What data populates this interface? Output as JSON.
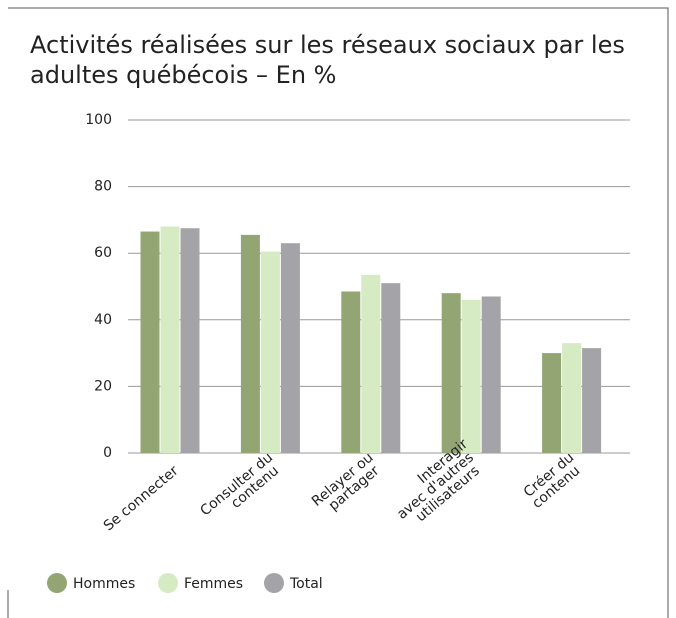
{
  "chart_data": {
    "type": "bar",
    "title": "Activités réalisées sur les réseaux sociaux par les adultes québécois – En %",
    "categories": [
      "Se connecter",
      "Consulter du\ncontenu",
      "Relayer ou\npartager",
      "Interagir\navec d'autres\nutilisateurs",
      "Créer du\ncontenu"
    ],
    "series": [
      {
        "name": "Hommes",
        "color": "#94a574",
        "values": [
          66.5,
          65.5,
          48.5,
          48,
          30
        ]
      },
      {
        "name": "Femmes",
        "color": "#d6ebc4",
        "values": [
          68,
          60.5,
          53.5,
          46,
          33
        ]
      },
      {
        "name": "Total",
        "color": "#a4a4a8",
        "values": [
          67.5,
          63,
          51,
          47,
          31.5
        ]
      }
    ],
    "ylim": [
      0,
      100
    ],
    "yticks": [
      0,
      20,
      40,
      60,
      80,
      100
    ],
    "grid": true,
    "legend": "bottom"
  }
}
